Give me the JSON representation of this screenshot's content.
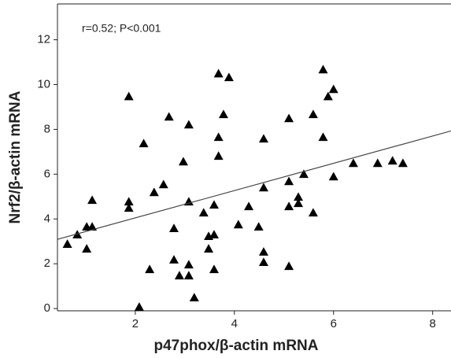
{
  "chart_data": {
    "type": "scatter",
    "annotation": "r=0.52; P<0.001",
    "x_label": "p47phox/β-actin mRNA",
    "y_label": "Nrf2/β-actin mRNA",
    "color": "#000000",
    "x": [
      0.63,
      0.83,
      1.02,
      1.02,
      1.13,
      1.13,
      1.87,
      1.87,
      1.87,
      2.08,
      2.17,
      2.29,
      2.38,
      2.57,
      2.68,
      2.78,
      2.78,
      2.89,
      2.97,
      3.08,
      3.08,
      3.08,
      3.08,
      3.19,
      3.38,
      3.48,
      3.48,
      3.59,
      3.59,
      3.59,
      3.68,
      3.68,
      3.68,
      3.78,
      3.89,
      4.08,
      4.29,
      4.49,
      4.59,
      4.59,
      4.59,
      4.59,
      5.1,
      5.1,
      5.1,
      5.1,
      5.29,
      5.29,
      5.4,
      5.59,
      5.59,
      5.79,
      5.79,
      5.89,
      6.0,
      6.0,
      6.4,
      6.89,
      7.19,
      7.4
    ],
    "values": [
      2.88,
      3.3,
      3.65,
      2.67,
      4.84,
      3.65,
      9.47,
      4.77,
      4.49,
      0.07,
      7.37,
      1.75,
      5.19,
      5.54,
      8.56,
      3.58,
      2.18,
      1.47,
      6.56,
      8.21,
      4.77,
      1.96,
      1.47,
      0.49,
      4.28,
      2.67,
      3.23,
      1.75,
      3.3,
      4.63,
      10.49,
      7.65,
      6.81,
      8.67,
      10.32,
      3.75,
      4.56,
      3.65,
      2.53,
      2.07,
      7.58,
      5.4,
      8.49,
      5.68,
      4.56,
      1.89,
      4.7,
      4.98,
      6.0,
      8.67,
      4.28,
      10.67,
      7.65,
      9.47,
      9.79,
      5.89,
      6.49,
      6.49,
      6.6,
      6.49
    ],
    "fit_line": {
      "x": [
        0.43,
        8.37
      ],
      "values": [
        3.09,
        7.93
      ]
    },
    "xlim": [
      0.43,
      8.37
    ],
    "ylim": [
      -0.1,
      13.6
    ],
    "xticks": [
      2,
      4,
      6,
      8
    ],
    "yticks": [
      0,
      2,
      4,
      6,
      8,
      10,
      12
    ]
  }
}
